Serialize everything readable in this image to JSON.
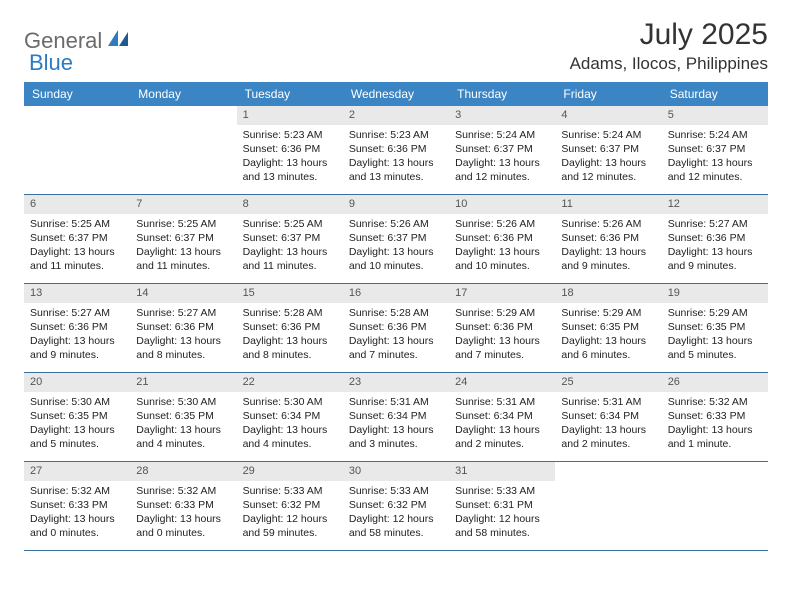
{
  "logo": {
    "part1": "General",
    "part2": "Blue"
  },
  "title": "July 2025",
  "location": "Adams, Ilocos, Philippines",
  "colors": {
    "header_bg": "#3b85c4",
    "header_text": "#ffffff",
    "daynum_bg": "#e9e9e9",
    "row_border": "#3b6fa0",
    "logo_gray": "#6b6b6b",
    "logo_blue": "#2e7bc0"
  },
  "dow": [
    "Sunday",
    "Monday",
    "Tuesday",
    "Wednesday",
    "Thursday",
    "Friday",
    "Saturday"
  ],
  "weeks": [
    [
      {
        "n": "",
        "sr": "",
        "ss": "",
        "dl": ""
      },
      {
        "n": "",
        "sr": "",
        "ss": "",
        "dl": ""
      },
      {
        "n": "1",
        "sr": "Sunrise: 5:23 AM",
        "ss": "Sunset: 6:36 PM",
        "dl": "Daylight: 13 hours and 13 minutes."
      },
      {
        "n": "2",
        "sr": "Sunrise: 5:23 AM",
        "ss": "Sunset: 6:36 PM",
        "dl": "Daylight: 13 hours and 13 minutes."
      },
      {
        "n": "3",
        "sr": "Sunrise: 5:24 AM",
        "ss": "Sunset: 6:37 PM",
        "dl": "Daylight: 13 hours and 12 minutes."
      },
      {
        "n": "4",
        "sr": "Sunrise: 5:24 AM",
        "ss": "Sunset: 6:37 PM",
        "dl": "Daylight: 13 hours and 12 minutes."
      },
      {
        "n": "5",
        "sr": "Sunrise: 5:24 AM",
        "ss": "Sunset: 6:37 PM",
        "dl": "Daylight: 13 hours and 12 minutes."
      }
    ],
    [
      {
        "n": "6",
        "sr": "Sunrise: 5:25 AM",
        "ss": "Sunset: 6:37 PM",
        "dl": "Daylight: 13 hours and 11 minutes."
      },
      {
        "n": "7",
        "sr": "Sunrise: 5:25 AM",
        "ss": "Sunset: 6:37 PM",
        "dl": "Daylight: 13 hours and 11 minutes."
      },
      {
        "n": "8",
        "sr": "Sunrise: 5:25 AM",
        "ss": "Sunset: 6:37 PM",
        "dl": "Daylight: 13 hours and 11 minutes."
      },
      {
        "n": "9",
        "sr": "Sunrise: 5:26 AM",
        "ss": "Sunset: 6:37 PM",
        "dl": "Daylight: 13 hours and 10 minutes."
      },
      {
        "n": "10",
        "sr": "Sunrise: 5:26 AM",
        "ss": "Sunset: 6:36 PM",
        "dl": "Daylight: 13 hours and 10 minutes."
      },
      {
        "n": "11",
        "sr": "Sunrise: 5:26 AM",
        "ss": "Sunset: 6:36 PM",
        "dl": "Daylight: 13 hours and 9 minutes."
      },
      {
        "n": "12",
        "sr": "Sunrise: 5:27 AM",
        "ss": "Sunset: 6:36 PM",
        "dl": "Daylight: 13 hours and 9 minutes."
      }
    ],
    [
      {
        "n": "13",
        "sr": "Sunrise: 5:27 AM",
        "ss": "Sunset: 6:36 PM",
        "dl": "Daylight: 13 hours and 9 minutes."
      },
      {
        "n": "14",
        "sr": "Sunrise: 5:27 AM",
        "ss": "Sunset: 6:36 PM",
        "dl": "Daylight: 13 hours and 8 minutes."
      },
      {
        "n": "15",
        "sr": "Sunrise: 5:28 AM",
        "ss": "Sunset: 6:36 PM",
        "dl": "Daylight: 13 hours and 8 minutes."
      },
      {
        "n": "16",
        "sr": "Sunrise: 5:28 AM",
        "ss": "Sunset: 6:36 PM",
        "dl": "Daylight: 13 hours and 7 minutes."
      },
      {
        "n": "17",
        "sr": "Sunrise: 5:29 AM",
        "ss": "Sunset: 6:36 PM",
        "dl": "Daylight: 13 hours and 7 minutes."
      },
      {
        "n": "18",
        "sr": "Sunrise: 5:29 AM",
        "ss": "Sunset: 6:35 PM",
        "dl": "Daylight: 13 hours and 6 minutes."
      },
      {
        "n": "19",
        "sr": "Sunrise: 5:29 AM",
        "ss": "Sunset: 6:35 PM",
        "dl": "Daylight: 13 hours and 5 minutes."
      }
    ],
    [
      {
        "n": "20",
        "sr": "Sunrise: 5:30 AM",
        "ss": "Sunset: 6:35 PM",
        "dl": "Daylight: 13 hours and 5 minutes."
      },
      {
        "n": "21",
        "sr": "Sunrise: 5:30 AM",
        "ss": "Sunset: 6:35 PM",
        "dl": "Daylight: 13 hours and 4 minutes."
      },
      {
        "n": "22",
        "sr": "Sunrise: 5:30 AM",
        "ss": "Sunset: 6:34 PM",
        "dl": "Daylight: 13 hours and 4 minutes."
      },
      {
        "n": "23",
        "sr": "Sunrise: 5:31 AM",
        "ss": "Sunset: 6:34 PM",
        "dl": "Daylight: 13 hours and 3 minutes."
      },
      {
        "n": "24",
        "sr": "Sunrise: 5:31 AM",
        "ss": "Sunset: 6:34 PM",
        "dl": "Daylight: 13 hours and 2 minutes."
      },
      {
        "n": "25",
        "sr": "Sunrise: 5:31 AM",
        "ss": "Sunset: 6:34 PM",
        "dl": "Daylight: 13 hours and 2 minutes."
      },
      {
        "n": "26",
        "sr": "Sunrise: 5:32 AM",
        "ss": "Sunset: 6:33 PM",
        "dl": "Daylight: 13 hours and 1 minute."
      }
    ],
    [
      {
        "n": "27",
        "sr": "Sunrise: 5:32 AM",
        "ss": "Sunset: 6:33 PM",
        "dl": "Daylight: 13 hours and 0 minutes."
      },
      {
        "n": "28",
        "sr": "Sunrise: 5:32 AM",
        "ss": "Sunset: 6:33 PM",
        "dl": "Daylight: 13 hours and 0 minutes."
      },
      {
        "n": "29",
        "sr": "Sunrise: 5:33 AM",
        "ss": "Sunset: 6:32 PM",
        "dl": "Daylight: 12 hours and 59 minutes."
      },
      {
        "n": "30",
        "sr": "Sunrise: 5:33 AM",
        "ss": "Sunset: 6:32 PM",
        "dl": "Daylight: 12 hours and 58 minutes."
      },
      {
        "n": "31",
        "sr": "Sunrise: 5:33 AM",
        "ss": "Sunset: 6:31 PM",
        "dl": "Daylight: 12 hours and 58 minutes."
      },
      {
        "n": "",
        "sr": "",
        "ss": "",
        "dl": ""
      },
      {
        "n": "",
        "sr": "",
        "ss": "",
        "dl": ""
      }
    ]
  ]
}
